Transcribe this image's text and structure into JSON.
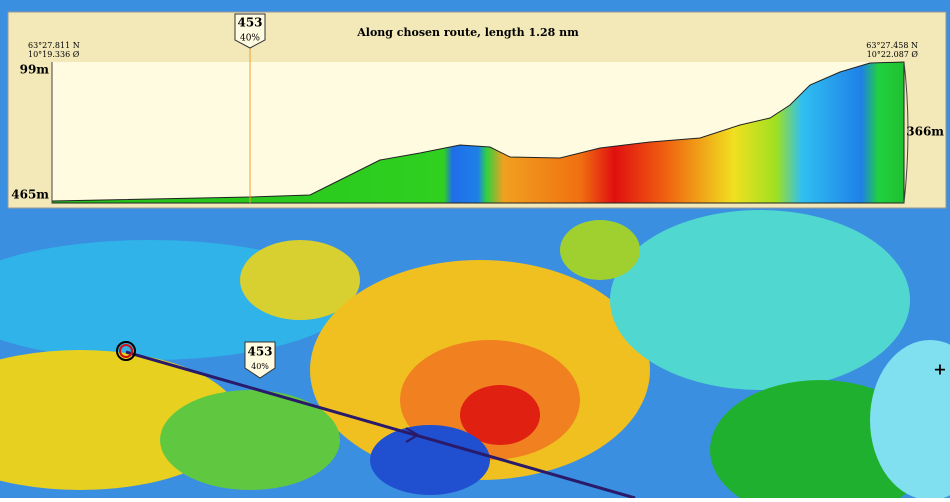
{
  "profile": {
    "title": "Along chosen route, length 1.28 nm",
    "start": {
      "lat": "63°27.811 N",
      "lon": "10°19.336 Ø"
    },
    "end": {
      "lat": "63°27.458 N",
      "lon": "10°22.087 Ø"
    },
    "top_label": "99m",
    "bottom_label": "465m",
    "end_label": "366m",
    "cursor": {
      "value": "453",
      "percent": "40%"
    }
  },
  "map_marker": {
    "value": "453",
    "percent": "40%"
  }
}
